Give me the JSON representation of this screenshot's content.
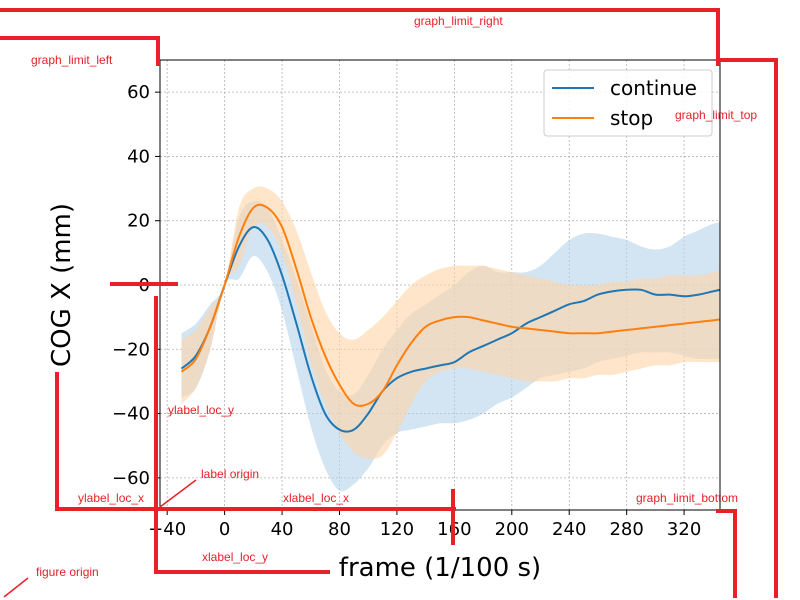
{
  "chart_data": {
    "type": "line",
    "title": "",
    "xlabel": "frame (1/100 s)",
    "ylabel": "COG X (mm)",
    "xlim": [
      -45,
      345
    ],
    "ylim": [
      -70,
      70
    ],
    "xticks": [
      -40,
      0,
      40,
      80,
      120,
      160,
      200,
      240,
      280,
      320
    ],
    "yticks": [
      -60,
      -40,
      -20,
      0,
      20,
      40,
      60
    ],
    "xtick_labels": [
      "−40",
      "0",
      "40",
      "80",
      "120",
      "160",
      "200",
      "240",
      "280",
      "320"
    ],
    "ytick_labels": [
      "−60",
      "−40",
      "−20",
      "0",
      "20",
      "40",
      "60"
    ],
    "grid": true,
    "legend_position": "top-right",
    "series": [
      {
        "name": "continue",
        "color": "#1f77b4",
        "band_color": "#b6d2e9",
        "x": [
          -30,
          -20,
          -10,
          0,
          10,
          20,
          30,
          40,
          50,
          60,
          70,
          80,
          90,
          100,
          110,
          120,
          130,
          140,
          150,
          160,
          170,
          180,
          190,
          200,
          210,
          220,
          230,
          240,
          250,
          260,
          270,
          280,
          290,
          300,
          310,
          320,
          330,
          340,
          350
        ],
        "y": [
          -26,
          -22,
          -13,
          0,
          12,
          18,
          14,
          3,
          -12,
          -28,
          -40,
          -45,
          -45,
          -40,
          -33,
          -29,
          -27,
          -26,
          -25,
          -24,
          -21,
          -19,
          -17,
          -15,
          -12,
          -10,
          -8,
          -6,
          -5,
          -3,
          -2,
          -1.5,
          -1.5,
          -3,
          -3,
          -3.5,
          -3,
          -2,
          -1
        ],
        "upper": [
          -15,
          -12,
          -6,
          0,
          21,
          26,
          24,
          14,
          2,
          -12,
          -26,
          -33,
          -34,
          -28,
          -20,
          -14,
          -9,
          -6,
          -3,
          0,
          4,
          6,
          4,
          4,
          4,
          6,
          10,
          14,
          16,
          16,
          15,
          14,
          12,
          11,
          12,
          15,
          17,
          19,
          20
        ],
        "lower": [
          -35,
          -32,
          -20,
          0,
          2,
          9,
          4,
          -8,
          -26,
          -44,
          -57,
          -64,
          -62,
          -57,
          -50,
          -46,
          -45,
          -44,
          -43,
          -43,
          -42,
          -40,
          -37,
          -35,
          -32,
          -29,
          -28,
          -27,
          -26,
          -24,
          -23,
          -22,
          -21,
          -21,
          -21,
          -22,
          -23,
          -23,
          -23
        ]
      },
      {
        "name": "stop",
        "color": "#ff7f0e",
        "band_color": "#ffd5a8",
        "x": [
          -30,
          -20,
          -10,
          0,
          10,
          20,
          30,
          40,
          50,
          60,
          70,
          80,
          90,
          100,
          110,
          120,
          130,
          140,
          150,
          160,
          170,
          180,
          190,
          200,
          210,
          220,
          230,
          240,
          250,
          260,
          270,
          280,
          290,
          300,
          310,
          320,
          330,
          340,
          350
        ],
        "y": [
          -27,
          -23,
          -13,
          0,
          15,
          24,
          24,
          18,
          5,
          -10,
          -22,
          -31,
          -37,
          -37,
          -33,
          -25,
          -18,
          -13,
          -11,
          -10,
          -10,
          -11,
          -12,
          -13,
          -13.5,
          -14,
          -14.5,
          -15,
          -15,
          -15,
          -14.5,
          -14,
          -13.5,
          -13,
          -12.5,
          -12,
          -11.5,
          -11,
          -10.5
        ],
        "upper": [
          -17,
          -14,
          -7,
          0,
          24,
          30,
          30,
          26,
          17,
          4,
          -8,
          -15,
          -17,
          -14,
          -10,
          -5,
          0,
          3,
          5,
          6,
          6,
          6,
          5,
          4,
          3,
          2,
          1,
          0,
          0,
          0,
          1,
          1,
          2,
          2,
          3,
          3,
          3,
          4,
          5
        ],
        "lower": [
          -37,
          -32,
          -20,
          0,
          6,
          18,
          18,
          10,
          -6,
          -24,
          -37,
          -46,
          -52,
          -54,
          -53,
          -46,
          -37,
          -30,
          -27,
          -26,
          -26,
          -27,
          -28,
          -29,
          -30,
          -30,
          -30,
          -29,
          -29,
          -28,
          -28,
          -27,
          -26,
          -25,
          -25,
          -24,
          -24,
          -24,
          -24
        ]
      }
    ],
    "annotations": {
      "color": "#e8202a",
      "labels": [
        "graph_limit_right",
        "graph_limit_left",
        "graph_limit_top",
        "ylabel_loc_y",
        "label origin",
        "ylabel_loc_x",
        "xlabel_loc_x",
        "graph_limit_bottom",
        "xlabel_loc_y",
        "figure origin"
      ]
    }
  }
}
